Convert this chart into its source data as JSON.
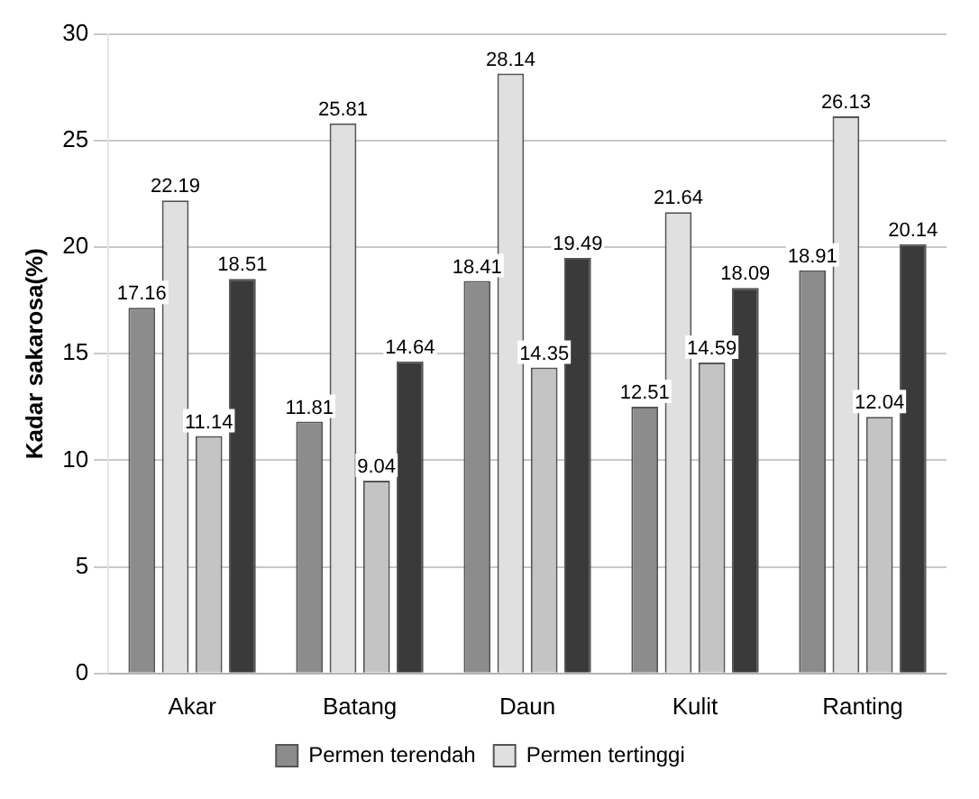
{
  "chart_data": {
    "type": "bar",
    "ylabel": "Kadar sakarosa(%)",
    "categories": [
      "Akar",
      "Batang",
      "Daun",
      "Kulit",
      "Ranting"
    ],
    "series": [
      {
        "name": "Permen terendah",
        "color": "#8c8c8c",
        "values": [
          17.16,
          11.81,
          18.41,
          12.51,
          18.91
        ]
      },
      {
        "name": "Permen tertinggi",
        "color": "#e0e0e0",
        "values": [
          22.19,
          25.81,
          28.14,
          21.64,
          26.13
        ]
      },
      {
        "color": "#c4c4c4",
        "values": [
          11.14,
          9.04,
          14.35,
          14.59,
          12.04
        ]
      },
      {
        "color": "#3a3a3a",
        "values": [
          18.51,
          14.64,
          19.49,
          18.09,
          20.14
        ]
      }
    ],
    "ylim": [
      0,
      30
    ],
    "yticks": [
      0,
      5,
      10,
      15,
      20,
      25,
      30
    ],
    "grid": "y",
    "legend": "bottom",
    "data_labels": true
  }
}
